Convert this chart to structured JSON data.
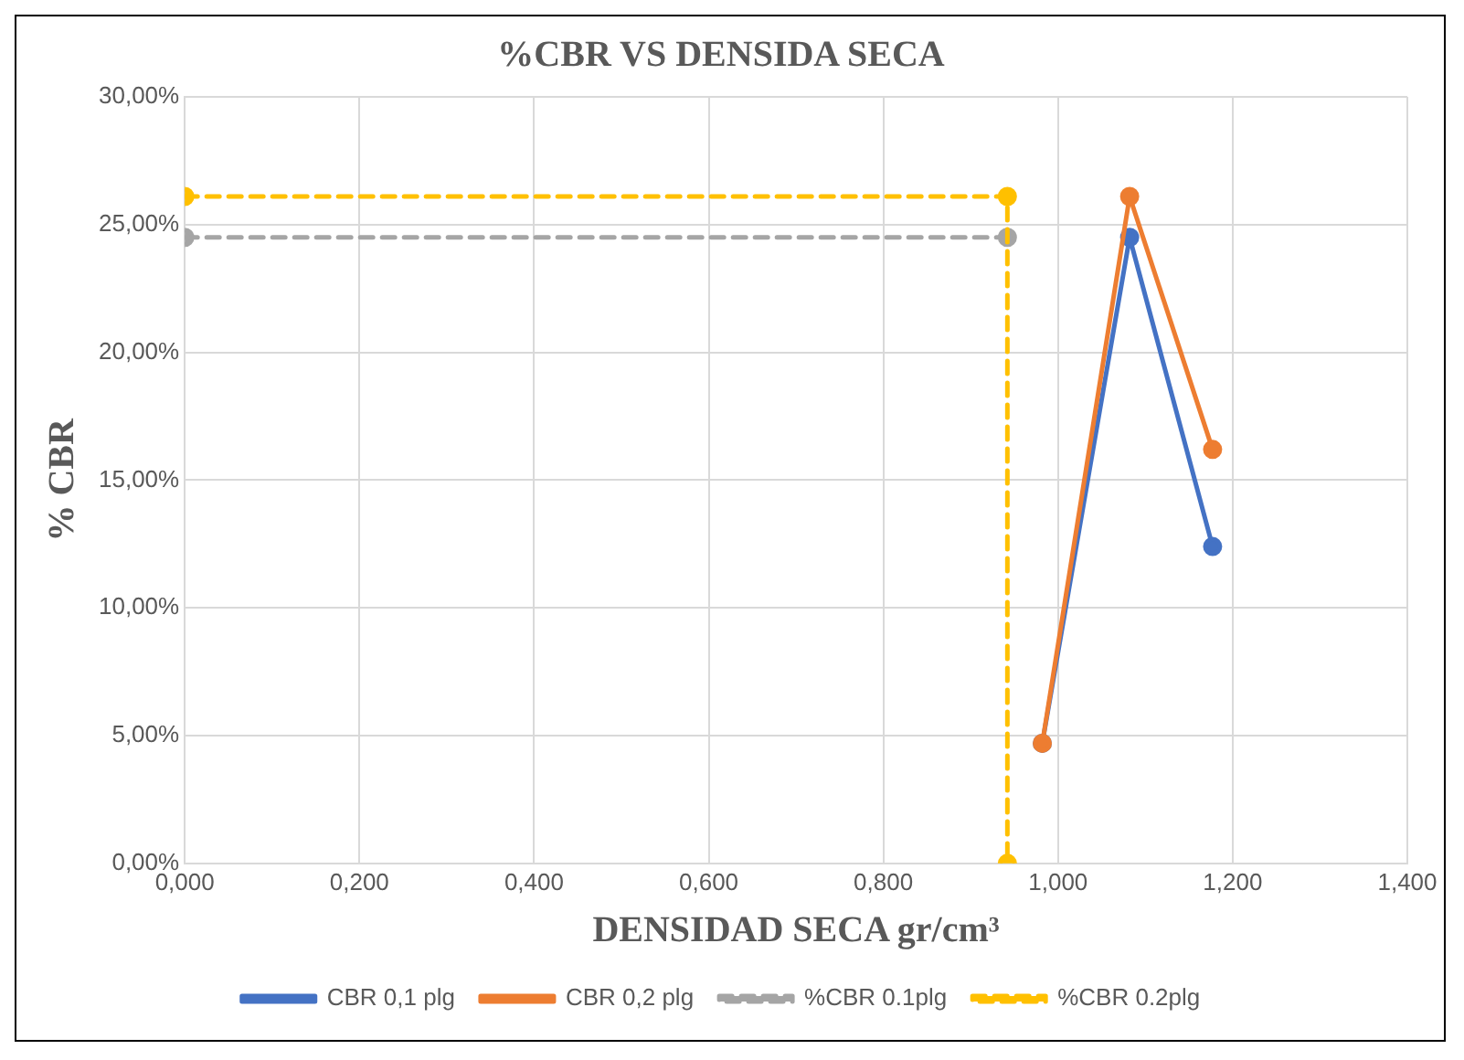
{
  "chart_data": {
    "type": "line",
    "title": "%CBR VS DENSIDA SECA",
    "xlabel": "DENSIDAD SECA gr/cm³",
    "ylabel": "% CBR",
    "series": [
      {
        "name": "CBR 0,1 plg",
        "color": "#4472c4",
        "x": [
          0.982,
          1.082,
          1.177
        ],
        "values": [
          0.047,
          0.245,
          0.124
        ]
      },
      {
        "name": "CBR 0,2 plg",
        "color": "#ed7d31",
        "x": [
          0.982,
          1.082,
          1.177
        ],
        "values": [
          0.047,
          0.261,
          0.162
        ]
      },
      {
        "name": "%CBR 0.1plg",
        "color": "#a5a5a5",
        "line_style": "dashed",
        "x": [
          0,
          0.942
        ],
        "values": [
          0.245,
          0.245
        ]
      },
      {
        "name": "%CBR 0.2plg",
        "color": "#ffc000",
        "line_style": "dashed",
        "x": [
          0,
          0.942,
          0.942
        ],
        "values": [
          0.261,
          0.261,
          0
        ]
      }
    ],
    "xlim": [
      0,
      1.4
    ],
    "xticks": [
      {
        "value": 0,
        "label": "0,000"
      },
      {
        "value": 0.2,
        "label": "0,200"
      },
      {
        "value": 0.4,
        "label": "0,400"
      },
      {
        "value": 0.6,
        "label": "0,600"
      },
      {
        "value": 0.8,
        "label": "0,800"
      },
      {
        "value": 1,
        "label": "1,000"
      },
      {
        "value": 1.2,
        "label": "1,200"
      },
      {
        "value": 1.4,
        "label": "1,400"
      }
    ],
    "ylim": [
      0,
      0.3
    ],
    "yticks": [
      {
        "value": 0,
        "label": "0,00%"
      },
      {
        "value": 0.05,
        "label": "5,00%"
      },
      {
        "value": 0.1,
        "label": "10,00%"
      },
      {
        "value": 0.15,
        "label": "15,00%"
      },
      {
        "value": 0.2,
        "label": "20,00%"
      },
      {
        "value": 0.25,
        "label": "25,00%"
      },
      {
        "value": 0.3,
        "label": "30,00%"
      }
    ],
    "grid": true,
    "legend": "bottom",
    "marker": "circle"
  }
}
